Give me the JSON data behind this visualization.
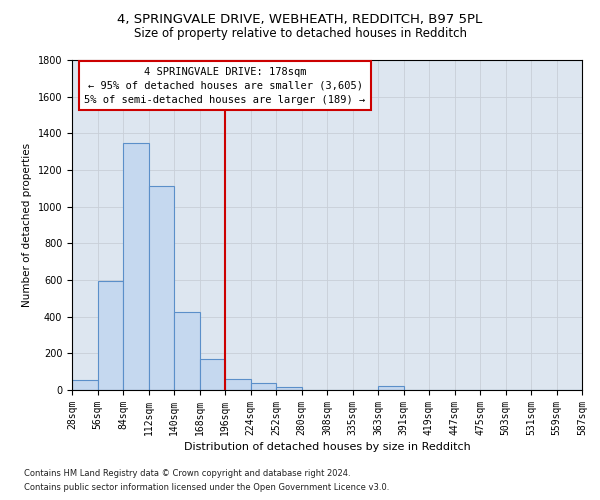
{
  "title1": "4, SPRINGVALE DRIVE, WEBHEATH, REDDITCH, B97 5PL",
  "title2": "Size of property relative to detached houses in Redditch",
  "xlabel": "Distribution of detached houses by size in Redditch",
  "ylabel": "Number of detached properties",
  "footnote1": "Contains HM Land Registry data © Crown copyright and database right 2024.",
  "footnote2": "Contains public sector information licensed under the Open Government Licence v3.0.",
  "bar_values": [
    55,
    595,
    1345,
    1115,
    425,
    170,
    60,
    40,
    15,
    0,
    0,
    0,
    20,
    0,
    0,
    0,
    0,
    0,
    0,
    0
  ],
  "bin_labels": [
    "28sqm",
    "56sqm",
    "84sqm",
    "112sqm",
    "140sqm",
    "168sqm",
    "196sqm",
    "224sqm",
    "252sqm",
    "280sqm",
    "308sqm",
    "335sqm",
    "363sqm",
    "391sqm",
    "419sqm",
    "447sqm",
    "475sqm",
    "503sqm",
    "531sqm",
    "559sqm",
    "587sqm"
  ],
  "bar_color": "#c5d8ef",
  "bar_edge_color": "#5b8fc9",
  "vline_color": "#cc0000",
  "annotation_text": "4 SPRINGVALE DRIVE: 178sqm\n← 95% of detached houses are smaller (3,605)\n5% of semi-detached houses are larger (189) →",
  "annotation_box_color": "#cc0000",
  "ylim": [
    0,
    1800
  ],
  "yticks": [
    0,
    200,
    400,
    600,
    800,
    1000,
    1200,
    1400,
    1600,
    1800
  ],
  "grid_color": "#c8cfd8",
  "bg_color": "#dde6f0",
  "title1_fontsize": 9.5,
  "title2_fontsize": 8.5,
  "xlabel_fontsize": 8,
  "ylabel_fontsize": 7.5,
  "tick_fontsize": 7,
  "annot_fontsize": 7.5,
  "footnote_fontsize": 6
}
